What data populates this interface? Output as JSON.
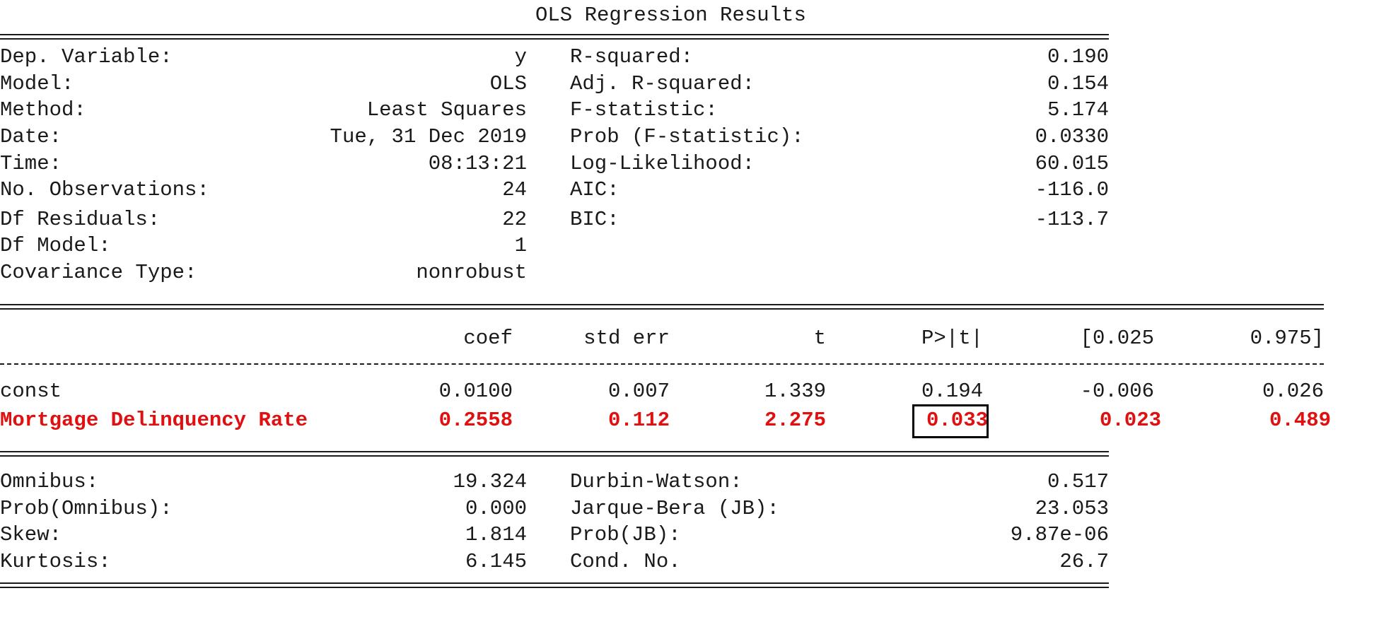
{
  "title": "OLS Regression Results",
  "header_left": [
    {
      "label": "Dep. Variable:",
      "value": "y"
    },
    {
      "label": "Model:",
      "value": "OLS"
    },
    {
      "label": "Method:",
      "value": "Least Squares"
    },
    {
      "label": "Date:",
      "value": "Tue, 31 Dec 2019"
    },
    {
      "label": "Time:",
      "value": "08:13:21"
    },
    {
      "label": "No. Observations:",
      "value": "24"
    },
    {
      "label": "Df Residuals:",
      "value": "22"
    },
    {
      "label": "Df Model:",
      "value": "1"
    },
    {
      "label": "Covariance Type:",
      "value": "nonrobust"
    }
  ],
  "header_right": [
    {
      "label": "R-squared:",
      "value": "0.190"
    },
    {
      "label": "Adj. R-squared:",
      "value": "0.154"
    },
    {
      "label": "F-statistic:",
      "value": "5.174"
    },
    {
      "label": "Prob (F-statistic):",
      "value": "0.0330"
    },
    {
      "label": "Log-Likelihood:",
      "value": "60.015"
    },
    {
      "label": "AIC:",
      "value": "-116.0"
    },
    {
      "label": "BIC:",
      "value": "-113.7"
    }
  ],
  "coef_table": {
    "columns": [
      "coef",
      "std err",
      "t",
      "P>|t|",
      "[0.025",
      "0.975]"
    ],
    "rows": [
      {
        "name": "const",
        "values": [
          "0.0100",
          "0.007",
          "1.339",
          "0.194",
          "-0.006",
          "0.026"
        ],
        "highlight": false
      },
      {
        "name": "Mortgage Delinquency Rate",
        "values": [
          "0.2558",
          "0.112",
          "2.275",
          "0.033",
          "0.023",
          "0.489"
        ],
        "highlight": true
      }
    ],
    "highlight_color": "#e01010",
    "boxed_cell": "Mortgage Delinquency Rate P>|t|"
  },
  "footer_left": [
    {
      "label": "Omnibus:",
      "value": "19.324"
    },
    {
      "label": "Prob(Omnibus):",
      "value": "0.000"
    },
    {
      "label": "Skew:",
      "value": "1.814"
    },
    {
      "label": "Kurtosis:",
      "value": "6.145"
    }
  ],
  "footer_right": [
    {
      "label": "Durbin-Watson:",
      "value": "0.517"
    },
    {
      "label": "Jarque-Bera (JB):",
      "value": "23.053"
    },
    {
      "label": "Prob(JB):",
      "value": "9.87e-06"
    },
    {
      "label": "Cond. No.",
      "value": "26.7"
    }
  ]
}
